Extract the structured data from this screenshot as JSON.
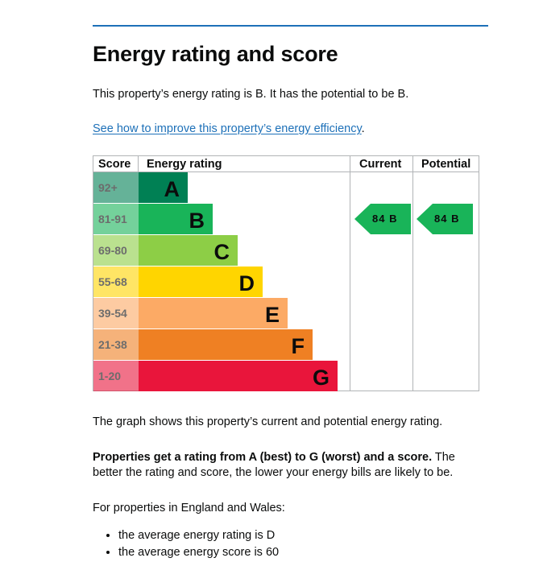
{
  "heading": "Energy rating and score",
  "intro": "This property’s energy rating is B. It has the potential to be B.",
  "improve_link": "See how to improve this property’s energy efficiency",
  "improve_link_suffix": ".",
  "chart_caption": "The graph shows this property’s current and potential energy rating.",
  "rating_explainer_bold": "Properties get a rating from A (best) to G (worst) and a score.",
  "rating_explainer_rest": " The better the rating and score, the lower your energy bills are likely to be.",
  "regional_intro": "For properties in England and Wales:",
  "averages": [
    "the average energy rating is D",
    "the average energy score is 60"
  ],
  "colors": {
    "A": "#008054",
    "B": "#19b459",
    "C": "#8dce46",
    "D": "#ffd500",
    "E": "#fcaa65",
    "F": "#ef8023",
    "G": "#e9153b",
    "link": "#1d70b8",
    "rule": "#1d70b8"
  },
  "chart_data": {
    "type": "table",
    "title": "Energy rating and score",
    "columns": [
      "Score",
      "Energy rating",
      "Current",
      "Potential"
    ],
    "bands": [
      {
        "score_range": "92+",
        "letter": "A"
      },
      {
        "score_range": "81-91",
        "letter": "B"
      },
      {
        "score_range": "69-80",
        "letter": "C"
      },
      {
        "score_range": "55-68",
        "letter": "D"
      },
      {
        "score_range": "39-54",
        "letter": "E"
      },
      {
        "score_range": "21-38",
        "letter": "F"
      },
      {
        "score_range": "1-20",
        "letter": "G"
      }
    ],
    "current": {
      "score": 84,
      "letter": "B",
      "label": "84  B"
    },
    "potential": {
      "score": 84,
      "letter": "B",
      "label": "84  B"
    }
  }
}
